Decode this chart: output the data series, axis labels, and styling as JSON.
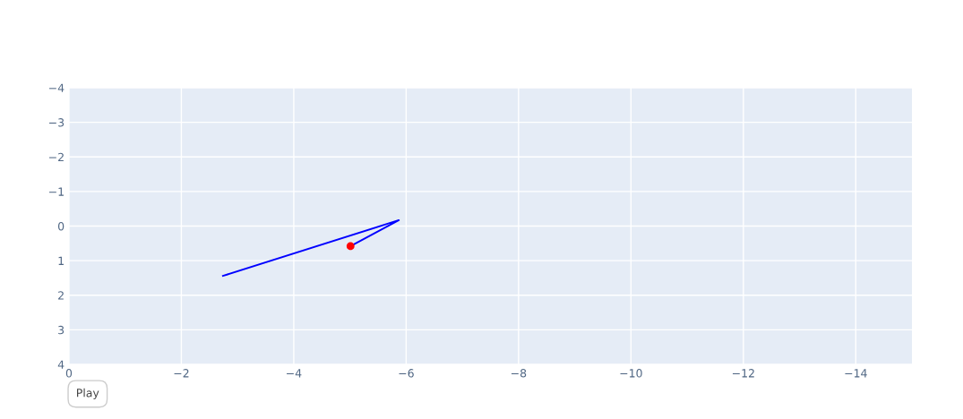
{
  "chart_data": {
    "type": "line",
    "series": [
      {
        "color": "#0000ff",
        "x": [
          -2.74,
          -5.87,
          -5.01
        ],
        "values": [
          1.44,
          -0.17,
          0.58
        ],
        "marker": "none"
      },
      {
        "type": "scatter",
        "color": "#ff0000",
        "x": [
          -5.01
        ],
        "values": [
          0.58
        ],
        "marker": "circle"
      }
    ],
    "xlim": [
      0,
      -15
    ],
    "xticks": [
      0,
      -2,
      -4,
      -6,
      -8,
      -10,
      -12,
      -14
    ],
    "ylim": [
      4,
      -4
    ],
    "yticks": [
      -4,
      -3,
      -2,
      -1,
      0,
      1,
      2,
      3,
      4
    ],
    "grid": true,
    "annotations": [
      "Play"
    ]
  }
}
